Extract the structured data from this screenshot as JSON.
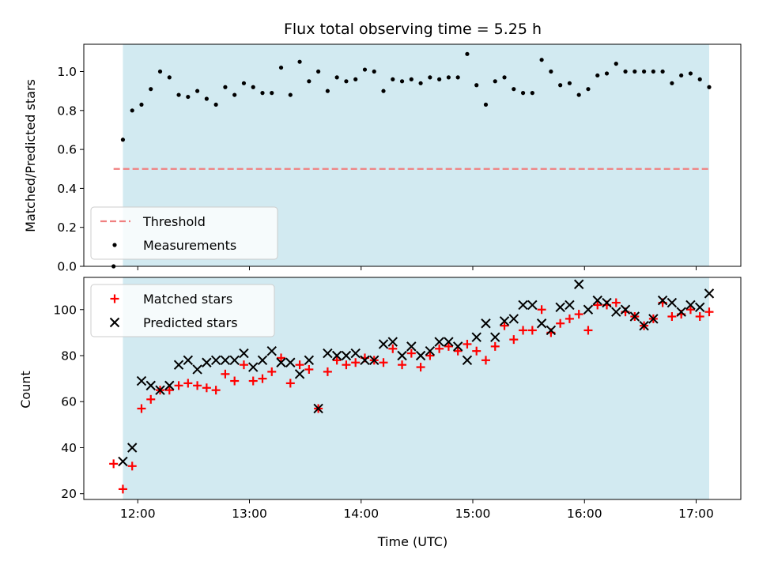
{
  "chart_data": [
    {
      "type": "scatter",
      "title": "Flux total observing time = 5.25 h",
      "xlabel": "",
      "ylabel": "Matched/Predicted stars",
      "xlim": [
        "11:31",
        "17:24"
      ],
      "ylim": [
        0,
        1.14
      ],
      "yticks": [
        0.0,
        0.2,
        0.4,
        0.6,
        0.8,
        1.0
      ],
      "ytick_labels": [
        "0.0",
        "0.2",
        "0.4",
        "0.6",
        "0.8",
        "1.0"
      ],
      "shaded_span": [
        "11:52",
        "17:07"
      ],
      "shaded_color": "#add8e6",
      "grid": false,
      "legend_position": "lower-left",
      "threshold": {
        "name": "Threshold",
        "y": 0.5,
        "x_range": [
          "11:47",
          "17:07"
        ],
        "color": "#f08080",
        "style": "dashed"
      },
      "series": [
        {
          "name": "Measurements",
          "marker": "dot",
          "color": "#000000",
          "x": [
            "11:47",
            "11:52",
            "11:57",
            "12:02",
            "12:07",
            "12:12",
            "12:17",
            "12:22",
            "12:27",
            "12:32",
            "12:37",
            "12:42",
            "12:47",
            "12:52",
            "12:57",
            "13:02",
            "13:07",
            "13:12",
            "13:17",
            "13:22",
            "13:27",
            "13:32",
            "13:37",
            "13:42",
            "13:47",
            "13:52",
            "13:57",
            "14:02",
            "14:07",
            "14:12",
            "14:17",
            "14:22",
            "14:27",
            "14:32",
            "14:37",
            "14:42",
            "14:47",
            "14:52",
            "14:57",
            "15:02",
            "15:07",
            "15:12",
            "15:17",
            "15:22",
            "15:27",
            "15:32",
            "15:37",
            "15:42",
            "15:47",
            "15:52",
            "15:57",
            "16:02",
            "16:07",
            "16:12",
            "16:17",
            "16:22",
            "16:27",
            "16:32",
            "16:37",
            "16:42",
            "16:47",
            "16:52",
            "16:57",
            "17:02",
            "17:07"
          ],
          "y": [
            0.0,
            0.65,
            0.8,
            0.83,
            0.91,
            1.0,
            0.97,
            0.88,
            0.87,
            0.9,
            0.86,
            0.83,
            0.92,
            0.88,
            0.94,
            0.92,
            0.89,
            0.89,
            1.02,
            0.88,
            1.05,
            0.95,
            1.0,
            0.9,
            0.97,
            0.95,
            0.96,
            1.01,
            1.0,
            0.9,
            0.96,
            0.95,
            0.96,
            0.94,
            0.97,
            0.96,
            0.97,
            0.97,
            1.09,
            0.93,
            0.83,
            0.95,
            0.97,
            0.91,
            0.89,
            0.89,
            1.06,
            1.0,
            0.93,
            0.94,
            0.88,
            0.91,
            0.98,
            0.99,
            1.04,
            1.0,
            1.0,
            1.0,
            1.0,
            1.0,
            0.94,
            0.98,
            0.99,
            0.96,
            0.92
          ]
        }
      ]
    },
    {
      "type": "scatter",
      "title": "",
      "xlabel": "Time (UTC)",
      "ylabel": "Count",
      "xlim": [
        "11:31",
        "17:24"
      ],
      "ylim": [
        17.5,
        114
      ],
      "xticks": [
        "12:00",
        "13:00",
        "14:00",
        "15:00",
        "16:00",
        "17:00"
      ],
      "yticks": [
        20,
        40,
        60,
        80,
        100
      ],
      "ytick_labels": [
        "20",
        "40",
        "60",
        "80",
        "100"
      ],
      "shaded_span": [
        "11:52",
        "17:07"
      ],
      "shaded_color": "#add8e6",
      "grid": false,
      "legend_position": "upper-left",
      "series": [
        {
          "name": "Matched stars",
          "marker": "plus",
          "color": "#ff0000",
          "x": [
            "11:47",
            "11:52",
            "11:57",
            "12:02",
            "12:07",
            "12:12",
            "12:17",
            "12:22",
            "12:27",
            "12:32",
            "12:37",
            "12:42",
            "12:47",
            "12:52",
            "12:57",
            "13:02",
            "13:07",
            "13:12",
            "13:17",
            "13:22",
            "13:27",
            "13:32",
            "13:37",
            "13:42",
            "13:47",
            "13:52",
            "13:57",
            "14:02",
            "14:07",
            "14:12",
            "14:17",
            "14:22",
            "14:27",
            "14:32",
            "14:37",
            "14:42",
            "14:47",
            "14:52",
            "14:57",
            "15:02",
            "15:07",
            "15:12",
            "15:17",
            "15:22",
            "15:27",
            "15:32",
            "15:37",
            "15:42",
            "15:47",
            "15:52",
            "15:57",
            "16:02",
            "16:07",
            "16:12",
            "16:17",
            "16:22",
            "16:27",
            "16:32",
            "16:37",
            "16:42",
            "16:47",
            "16:52",
            "16:57",
            "17:02",
            "17:07"
          ],
          "y": [
            33,
            22,
            32,
            57,
            61,
            65,
            65,
            67,
            68,
            67,
            66,
            65,
            72,
            69,
            76,
            69,
            70,
            73,
            79,
            68,
            76,
            74,
            57,
            73,
            78,
            76,
            77,
            79,
            78,
            77,
            83,
            76,
            81,
            75,
            80,
            83,
            84,
            82,
            85,
            82,
            78,
            84,
            93,
            87,
            91,
            91,
            100,
            90,
            94,
            96,
            98,
            91,
            102,
            102,
            103,
            99,
            97,
            93,
            96,
            103,
            97,
            98,
            100,
            97,
            99
          ]
        },
        {
          "name": "Predicted stars",
          "marker": "x",
          "color": "#000000",
          "x": [
            "11:52",
            "11:57",
            "12:02",
            "12:07",
            "12:12",
            "12:17",
            "12:22",
            "12:27",
            "12:32",
            "12:37",
            "12:42",
            "12:47",
            "12:52",
            "12:57",
            "13:02",
            "13:07",
            "13:12",
            "13:17",
            "13:22",
            "13:27",
            "13:32",
            "13:37",
            "13:42",
            "13:47",
            "13:52",
            "13:57",
            "14:02",
            "14:07",
            "14:12",
            "14:17",
            "14:22",
            "14:27",
            "14:32",
            "14:37",
            "14:42",
            "14:47",
            "14:52",
            "14:57",
            "15:02",
            "15:07",
            "15:12",
            "15:17",
            "15:22",
            "15:27",
            "15:32",
            "15:37",
            "15:42",
            "15:47",
            "15:52",
            "15:57",
            "16:02",
            "16:07",
            "16:12",
            "16:17",
            "16:22",
            "16:27",
            "16:32",
            "16:37",
            "16:42",
            "16:47",
            "16:52",
            "16:57",
            "17:02",
            "17:07"
          ],
          "y": [
            34,
            40,
            69,
            67,
            65,
            67,
            76,
            78,
            74,
            77,
            78,
            78,
            78,
            81,
            75,
            78,
            82,
            77,
            77,
            72,
            78,
            57,
            81,
            80,
            80,
            81,
            78,
            78,
            85,
            86,
            80,
            84,
            80,
            82,
            86,
            86,
            84,
            78,
            88,
            94,
            88,
            95,
            96,
            102,
            102,
            94,
            91,
            101,
            102,
            111,
            100,
            104,
            103,
            99,
            100,
            97,
            93,
            96,
            104,
            103,
            99,
            102,
            101,
            107
          ]
        }
      ]
    }
  ]
}
